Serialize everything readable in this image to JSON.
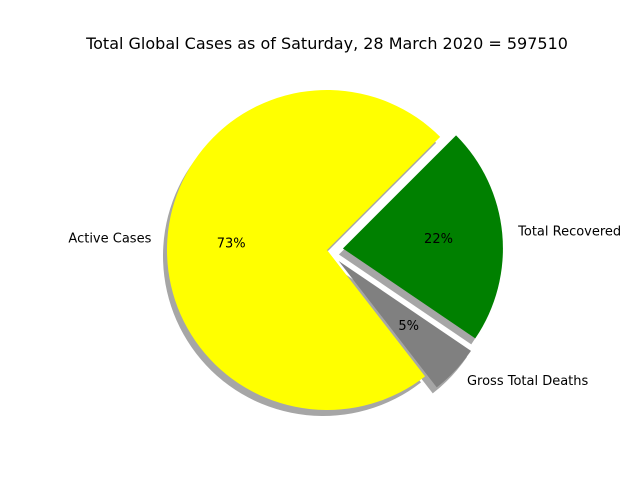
{
  "chart_data": {
    "type": "pie",
    "title": "Total Global Cases as of Saturday, 28 March 2020 = 597510",
    "slices": [
      {
        "label": "Active Cases",
        "percent": 73,
        "percent_label": "73%",
        "color": "#ffff00",
        "exploded": false
      },
      {
        "label": "Gross Total Deaths",
        "percent": 5,
        "percent_label": "5%",
        "color": "#808080",
        "exploded": true
      },
      {
        "label": "Total Recovered",
        "percent": 22,
        "percent_label": "22%",
        "color": "#008000",
        "exploded": true
      }
    ],
    "start_angle_deg": 45,
    "shadow": true,
    "legend": "none"
  }
}
